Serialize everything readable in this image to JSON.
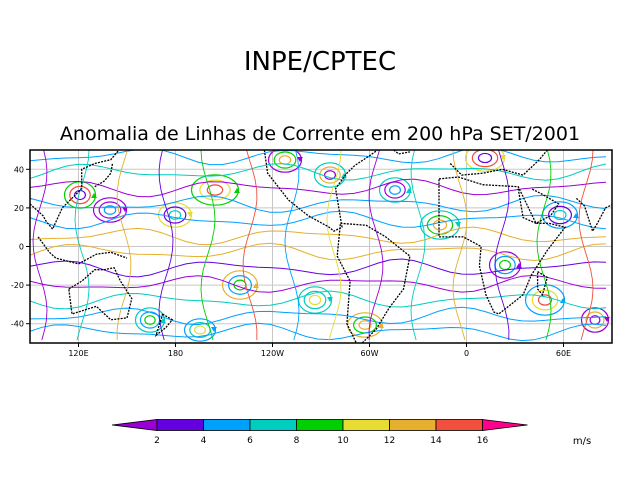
{
  "header": {
    "agency": "INPE/CPTEC",
    "title": "Anomalia de Linhas de Corrente em 200 hPa SET/2001"
  },
  "map": {
    "projection": "cylindrical-equidistant",
    "lon_range": [
      90,
      450
    ],
    "lat_range": [
      -50,
      50
    ],
    "y_ticks": [
      "40",
      "20",
      "0",
      "-20",
      "-40"
    ],
    "x_ticks": [
      "120E",
      "180",
      "120W",
      "60W",
      "0",
      "60E"
    ],
    "grid": true
  },
  "colorbar": {
    "labels": [
      "2",
      "4",
      "6",
      "8",
      "10",
      "12",
      "14",
      "16"
    ],
    "colors": [
      "#9a00d6",
      "#6400e0",
      "#00a0ff",
      "#00cdc0",
      "#00d000",
      "#e6dc32",
      "#e6af2d",
      "#f0503c",
      "#ff008c"
    ],
    "unit": "m/s"
  },
  "colors": {
    "land": "#000000",
    "grid": "#c8c8c8",
    "frame": "#000000"
  }
}
